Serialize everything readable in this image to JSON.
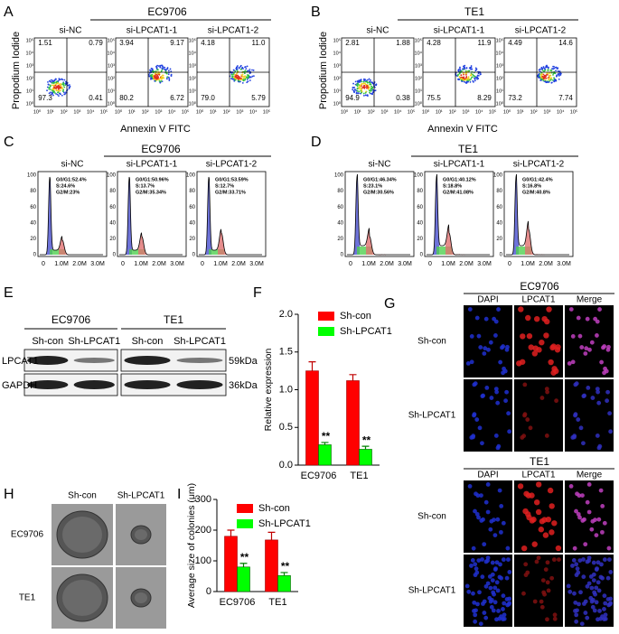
{
  "flow": [
    {
      "letter": "A",
      "title": "EC9706",
      "groups": [
        {
          "name": "si-NC",
          "quadrants": [
            "1.51",
            "0.79",
            "97.3",
            "0.41"
          ]
        },
        {
          "name": "si-LPCAT1-1",
          "quadrants": [
            "3.94",
            "9.17",
            "80.2",
            "6.72"
          ]
        },
        {
          "name": "si-LPCAT1-2",
          "quadrants": [
            "4.18",
            "11.0",
            "79.0",
            "5.79"
          ]
        }
      ]
    },
    {
      "letter": "B",
      "title": "TE1",
      "groups": [
        {
          "name": "si-NC",
          "quadrants": [
            "2.81",
            "1.88",
            "94.9",
            "0.38"
          ]
        },
        {
          "name": "si-LPCAT1-1",
          "quadrants": [
            "4.28",
            "11.9",
            "75.5",
            "8.29"
          ]
        },
        {
          "name": "si-LPCAT1-2",
          "quadrants": [
            "4.49",
            "14.6",
            "73.2",
            "7.74"
          ]
        }
      ]
    }
  ],
  "flow_y_label": "Propodium Iodide",
  "flow_x_label": "Annexin V FITC",
  "flow_axis_ticks": [
    "10⁰",
    "10¹",
    "10²",
    "10³",
    "10⁴",
    "10⁵"
  ],
  "cycle": [
    {
      "letter": "C",
      "title": "EC9706",
      "groups": [
        {
          "name": "si-NC",
          "phases": [
            "G0/G1:52.4%",
            "S:24.6%",
            "G2/M:23%"
          ]
        },
        {
          "name": "si-LPCAT1-1",
          "phases": [
            "G0/G1:50.96%",
            "S:13.7%",
            "G2/M:35.34%"
          ]
        },
        {
          "name": "si-LPCAT1-2",
          "phases": [
            "G0/G1:53.59%",
            "S:12.7%",
            "G2/M:33.71%"
          ]
        }
      ]
    },
    {
      "letter": "D",
      "title": "TE1",
      "groups": [
        {
          "name": "si-NC",
          "phases": [
            "G0/G1:46.34%",
            "S:23.1%",
            "G2/M:30.56%"
          ]
        },
        {
          "name": "si-LPCAT1-1",
          "phases": [
            "G0/G1:40.12%",
            "S:18.8%",
            "G2/M:41.08%"
          ]
        },
        {
          "name": "si-LPCAT1-2",
          "phases": [
            "G0/G1:42.4%",
            "S:16.8%",
            "G2/M:40.8%"
          ]
        }
      ]
    }
  ],
  "cycle_yticks": [
    "0",
    "20",
    "40",
    "60",
    "80",
    "100"
  ],
  "cycle_xticks": [
    "0",
    "1.0M",
    "2.0M",
    "3.0M"
  ],
  "blot": {
    "letter": "E",
    "lines": [
      "EC9706",
      "TE1"
    ],
    "lanes": [
      "Sh-con",
      "Sh-LPCAT1"
    ],
    "proteins": [
      {
        "name": "LPCAT1",
        "size": "59kDa"
      },
      {
        "name": "GAPDH",
        "size": "36kDa"
      }
    ]
  },
  "if_panel": {
    "letter": "G",
    "lines": [
      "EC9706",
      "TE1"
    ],
    "columns": [
      "DAPI",
      "LPCAT1",
      "Merge"
    ],
    "rows": [
      "Sh-con",
      "Sh-LPCAT1"
    ]
  },
  "colony": {
    "letter": "H",
    "columns": [
      "Sh-con",
      "Sh-LPCAT1"
    ],
    "rows": [
      "EC9706",
      "TE1"
    ]
  },
  "chart_data": [
    {
      "type": "bar",
      "letter": "F",
      "y_label": "Relative expression",
      "categories": [
        "EC9706",
        "TE1"
      ],
      "series": [
        {
          "name": "Sh-con",
          "color": "#ff0000",
          "values": [
            1.25,
            1.12
          ],
          "errors": [
            0.12,
            0.08
          ]
        },
        {
          "name": "Sh-LPCAT1",
          "color": "#00ff00",
          "values": [
            0.27,
            0.21
          ],
          "errors": [
            0.03,
            0.04
          ],
          "annotations": [
            "**",
            "**"
          ]
        }
      ],
      "ylim": [
        0,
        2
      ],
      "yticks": [
        {
          "value": 0,
          "label": "0.0"
        },
        {
          "value": 0.5,
          "label": "0.5"
        },
        {
          "value": 1,
          "label": "1.0"
        },
        {
          "value": 1.5,
          "label": "1.5"
        },
        {
          "value": 2,
          "label": "2.0"
        }
      ]
    },
    {
      "type": "bar",
      "letter": "I",
      "y_label": "Average size of colonies (μm)",
      "categories": [
        "EC9706",
        "TE1"
      ],
      "series": [
        {
          "name": "Sh-con",
          "color": "#ff0000",
          "values": [
            180,
            168
          ],
          "errors": [
            20,
            25
          ]
        },
        {
          "name": "Sh-LPCAT1",
          "color": "#00ff00",
          "values": [
            80,
            52
          ],
          "errors": [
            12,
            10
          ],
          "annotations": [
            "**",
            "**"
          ]
        }
      ],
      "ylim": [
        0,
        300
      ],
      "yticks": [
        0,
        100,
        200,
        300
      ]
    }
  ]
}
